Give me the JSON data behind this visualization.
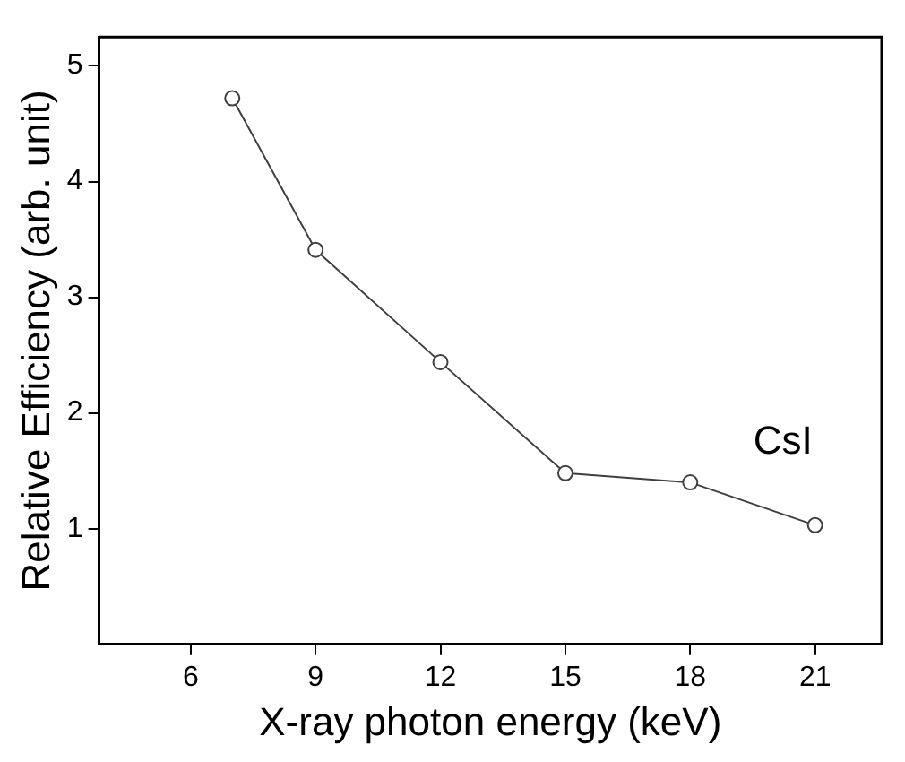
{
  "chart_data": {
    "type": "line",
    "xlabel": "X-ray photon energy (keV)",
    "ylabel": "Relative Efficiency (arb. unit)",
    "x": [
      7,
      9,
      12,
      15,
      18,
      21
    ],
    "series": [
      {
        "name": "CsI",
        "color": "#404040",
        "values": [
          4.72,
          3.41,
          2.44,
          1.48,
          1.4,
          1.03
        ]
      }
    ],
    "xlim": [
      3.8,
      22.6
    ],
    "xticks": [
      6,
      9,
      12,
      15,
      18,
      21
    ],
    "ylim": [
      0,
      5.25
    ],
    "yticks": [
      1,
      2,
      3,
      4,
      5
    ],
    "marker": "circle",
    "line_style": "solid",
    "grid": false,
    "legend": false
  }
}
